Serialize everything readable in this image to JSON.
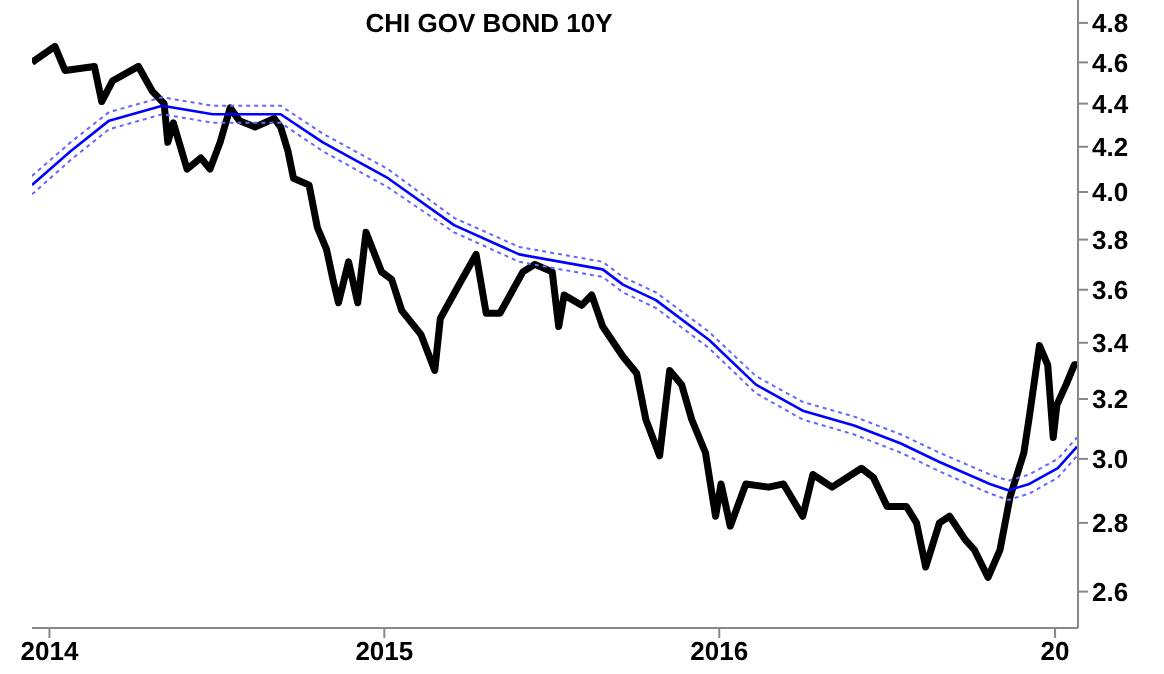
{
  "chart_data": {
    "type": "line",
    "title": "CHI GOV BOND 10Y",
    "log": "y",
    "xlim": [
      "2013-12-13",
      "2017-01-26"
    ],
    "xticks": [
      {
        "value": "2014-01-01",
        "label": "2014"
      },
      {
        "value": "2015-01-01",
        "label": "2015"
      },
      {
        "value": "2016-01-01",
        "label": "2016"
      },
      {
        "value": "2017-01-01",
        "label": "20"
      }
    ],
    "ylim": [
      2.5,
      4.92
    ],
    "yticks": [
      2.6,
      2.8,
      {
        "value": 3,
        "label": "3.0"
      },
      3.2,
      3.4,
      3.6,
      3.8,
      {
        "value": 4,
        "label": "4.0"
      },
      4.2,
      4.4,
      4.6,
      4.8
    ],
    "series": [
      {
        "color": "#000000",
        "x": [
          "2013-12-13",
          "2014-01-07",
          "2014-01-18",
          "2014-02-19",
          "2014-02-27",
          "2014-03-11",
          "2014-04-08",
          "2014-04-23",
          "2014-05-06",
          "2014-05-10",
          "2014-05-16",
          "2014-05-31",
          "2014-06-15",
          "2014-06-25",
          "2014-07-06",
          "2014-07-17",
          "2014-07-27",
          "2014-08-13",
          "2014-09-03",
          "2014-09-10",
          "2014-09-18",
          "2014-09-24",
          "2014-10-11",
          "2014-10-20",
          "2014-10-30",
          "2014-11-06",
          "2014-11-12",
          "2014-11-23",
          "2014-12-03",
          "2014-12-12",
          "2014-12-29",
          "2015-01-09",
          "2015-01-20",
          "2015-02-10",
          "2015-02-25",
          "2015-03-03",
          "2015-03-25",
          "2015-04-11",
          "2015-04-22",
          "2015-05-07",
          "2015-06-01",
          "2015-06-14",
          "2015-07-03",
          "2015-07-10",
          "2015-07-16",
          "2015-08-04",
          "2015-08-15",
          "2015-08-27",
          "2015-09-18",
          "2015-10-03",
          "2015-10-13",
          "2015-10-28",
          "2015-11-08",
          "2015-11-21",
          "2015-12-02",
          "2015-12-17",
          "2015-12-28",
          "2016-01-03",
          "2016-01-13",
          "2016-01-30",
          "2016-02-24",
          "2016-03-11",
          "2016-04-01",
          "2016-04-12",
          "2016-05-03",
          "2016-06-04",
          "2016-06-17",
          "2016-07-02",
          "2016-07-23",
          "2016-08-03",
          "2016-08-13",
          "2016-08-28",
          "2016-09-08",
          "2016-09-25",
          "2016-10-05",
          "2016-10-20",
          "2016-11-02",
          "2016-11-13",
          "2016-11-28",
          "2016-12-04",
          "2016-12-15",
          "2016-12-24",
          "2016-12-30",
          "2017-01-03",
          "2017-01-13",
          "2017-01-22",
          "2017-01-25"
        ],
        "values": [
          4.6,
          4.68,
          4.56,
          4.58,
          4.41,
          4.51,
          4.58,
          4.46,
          4.4,
          4.22,
          4.31,
          4.1,
          4.15,
          4.1,
          4.22,
          4.38,
          4.32,
          4.29,
          4.33,
          4.29,
          4.18,
          4.06,
          4.03,
          3.85,
          3.76,
          3.64,
          3.55,
          3.71,
          3.55,
          3.83,
          3.67,
          3.64,
          3.52,
          3.43,
          3.3,
          3.49,
          3.63,
          3.74,
          3.51,
          3.51,
          3.67,
          3.7,
          3.67,
          3.46,
          3.58,
          3.54,
          3.58,
          3.46,
          3.35,
          3.29,
          3.13,
          3.01,
          3.3,
          3.25,
          3.13,
          3.02,
          2.82,
          2.92,
          2.79,
          2.92,
          2.91,
          2.92,
          2.82,
          2.95,
          2.91,
          2.97,
          2.94,
          2.85,
          2.85,
          2.8,
          2.67,
          2.8,
          2.82,
          2.75,
          2.72,
          2.64,
          2.72,
          2.88,
          3.02,
          3.14,
          3.39,
          3.32,
          3.07,
          3.18,
          3.25,
          3.32,
          3.32
        ]
      },
      {
        "color": "#0000ff",
        "x": [
          "2013-12-13",
          "2014-01-24",
          "2014-03-07",
          "2014-05-04",
          "2014-06-28",
          "2014-09-10",
          "2014-10-26",
          "2015-01-05",
          "2015-03-18",
          "2015-05-28",
          "2015-08-27",
          "2015-09-18",
          "2015-10-24",
          "2015-12-21",
          "2016-02-10",
          "2016-04-01",
          "2016-05-27",
          "2016-07-17",
          "2016-08-28",
          "2016-10-22",
          "2016-11-11",
          "2016-12-04",
          "2017-01-04",
          "2017-01-25"
        ],
        "values": [
          4.03,
          4.18,
          4.32,
          4.39,
          4.35,
          4.35,
          4.22,
          4.06,
          3.86,
          3.74,
          3.68,
          3.62,
          3.56,
          3.41,
          3.25,
          3.16,
          3.11,
          3.05,
          2.99,
          2.92,
          2.9,
          2.92,
          2.97,
          3.04
        ]
      },
      {
        "color": "#6666ff",
        "line_style": "dotted",
        "x": [
          "2013-12-13",
          "2014-01-24",
          "2014-03-07",
          "2014-05-04",
          "2014-06-28",
          "2014-09-10",
          "2014-10-26",
          "2015-01-05",
          "2015-03-18",
          "2015-05-28",
          "2015-08-27",
          "2015-09-18",
          "2015-10-24",
          "2015-12-21",
          "2016-02-10",
          "2016-04-01",
          "2016-05-27",
          "2016-07-17",
          "2016-08-28",
          "2016-10-22",
          "2016-11-11",
          "2016-12-04",
          "2017-01-04",
          "2017-01-25"
        ],
        "values": [
          4.07,
          4.22,
          4.36,
          4.43,
          4.39,
          4.39,
          4.26,
          4.1,
          3.89,
          3.77,
          3.71,
          3.65,
          3.59,
          3.44,
          3.28,
          3.19,
          3.14,
          3.08,
          3.02,
          2.95,
          2.93,
          2.95,
          3.0,
          3.07
        ]
      },
      {
        "color": "#6666ff",
        "line_style": "dotted",
        "x": [
          "2013-12-13",
          "2014-01-24",
          "2014-03-07",
          "2014-05-04",
          "2014-06-28",
          "2014-09-10",
          "2014-10-26",
          "2015-01-05",
          "2015-03-18",
          "2015-05-28",
          "2015-08-27",
          "2015-09-18",
          "2015-10-24",
          "2015-12-21",
          "2016-02-10",
          "2016-04-01",
          "2016-05-27",
          "2016-07-17",
          "2016-08-28",
          "2016-10-22",
          "2016-11-11",
          "2016-12-04",
          "2017-01-04",
          "2017-01-25"
        ],
        "values": [
          3.99,
          4.14,
          4.28,
          4.35,
          4.31,
          4.31,
          4.18,
          4.02,
          3.83,
          3.71,
          3.65,
          3.59,
          3.53,
          3.38,
          3.22,
          3.13,
          3.08,
          3.02,
          2.96,
          2.89,
          2.87,
          2.89,
          2.94,
          3.01
        ]
      }
    ]
  }
}
